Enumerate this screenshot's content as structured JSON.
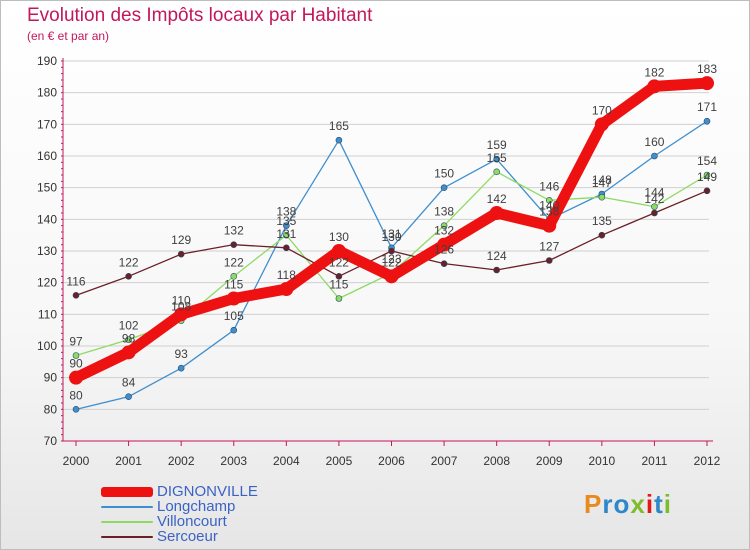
{
  "title": "Evolution des Impôts locaux par Habitant",
  "subtitle": "(en € et par an)",
  "logo": {
    "text": "Proxiti",
    "letter_colors": [
      "#e98a1e",
      "#2d87c8",
      "#2d87c8",
      "#7dbd2b",
      "#e0191b",
      "#2d87c8",
      "#7dbd2b"
    ]
  },
  "colors": {
    "title": "#c2185b",
    "axis": "#c2185b",
    "grid": "#d0d0d0",
    "value_label": "#404040"
  },
  "chart_data": {
    "type": "line",
    "title": "Evolution des Impôts locaux par Habitant",
    "subtitle": "(en € et par an)",
    "xlabel": "",
    "ylabel": "",
    "x": [
      "2000",
      "2001",
      "2002",
      "2003",
      "2004",
      "2005",
      "2006",
      "2007",
      "2008",
      "2009",
      "2010",
      "2011",
      "2012"
    ],
    "ylim": [
      70,
      190
    ],
    "yticks": [
      70,
      80,
      90,
      100,
      110,
      120,
      130,
      140,
      150,
      160,
      170,
      180,
      190
    ],
    "grid": "horizontal",
    "legend_position": "bottom-left",
    "series": [
      {
        "name": "DIGNONVILLE",
        "color": "#ee1111",
        "emphasis": true,
        "values": [
          90,
          98,
          110,
          115,
          118,
          130,
          122,
          132,
          142,
          138,
          170,
          182,
          183
        ]
      },
      {
        "name": "Longchamp",
        "color": "#3f8fcf",
        "values": [
          80,
          84,
          93,
          105,
          138,
          165,
          131,
          150,
          159,
          140,
          148,
          160,
          171
        ]
      },
      {
        "name": "Villoncourt",
        "color": "#8edb63",
        "values": [
          97,
          102,
          108,
          122,
          135,
          115,
          123,
          138,
          155,
          146,
          147,
          144,
          154
        ]
      },
      {
        "name": "Sercoeur",
        "color": "#6b1f26",
        "values": [
          116,
          122,
          129,
          132,
          131,
          122,
          130,
          126,
          124,
          127,
          135,
          142,
          149
        ]
      }
    ]
  }
}
